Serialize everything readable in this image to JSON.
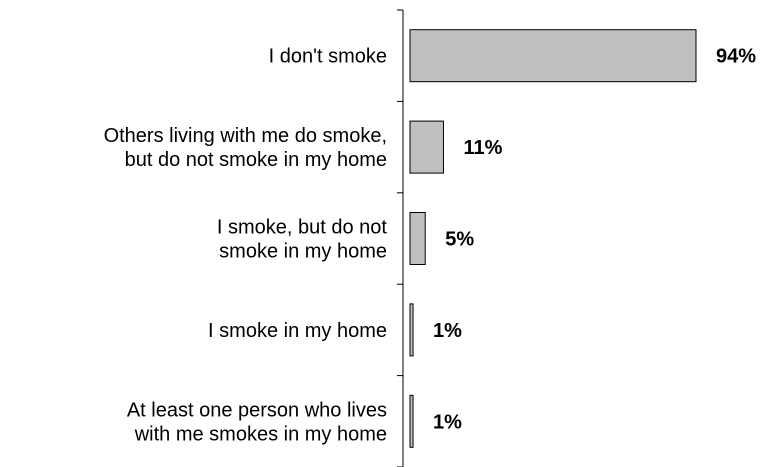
{
  "chart_data": {
    "type": "bar",
    "orientation": "horizontal",
    "categories": [
      [
        "I don't smoke"
      ],
      [
        "Others living with me do smoke,",
        "but do not smoke in my home"
      ],
      [
        "I smoke, but do not",
        "smoke in my home"
      ],
      [
        "I smoke in my home"
      ],
      [
        "At least one person who lives",
        "with me smokes in my home"
      ]
    ],
    "values": [
      94,
      11,
      5,
      1,
      1
    ],
    "value_labels": [
      "94%",
      "11%",
      "5%",
      "1%",
      "1%"
    ],
    "title": "",
    "xlabel": "",
    "ylabel": "",
    "xlim": [
      0,
      100
    ],
    "legend": "none",
    "grid": false,
    "bar_color": "#c0c0c0",
    "bar_edge_color": "#000000",
    "axis_color": "#000000"
  }
}
